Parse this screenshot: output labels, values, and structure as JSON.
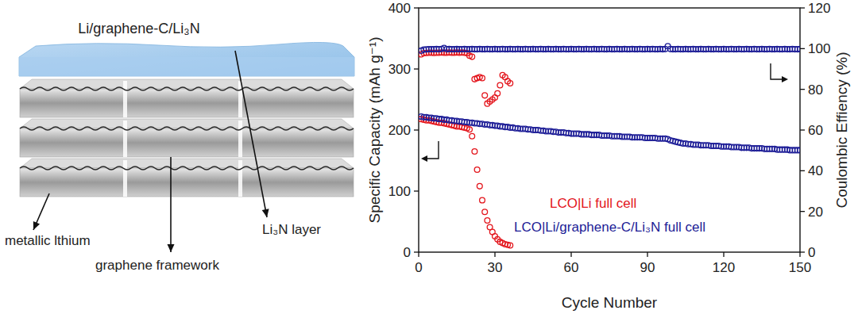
{
  "diagram": {
    "title": "Li/graphene-C/Li₃N",
    "labels": [
      "metallic lthium",
      "graphene framework",
      "Li₃N layer"
    ]
  },
  "chart_data": {
    "type": "scatter",
    "x_label": "Cycle Number",
    "y_label": "Specific Capacity (mAh g⁻¹)",
    "y2_label": "Coulombic Effiency (%)",
    "xlim": [
      0,
      150
    ],
    "xticks": [
      0,
      30,
      60,
      90,
      120,
      150
    ],
    "ylim": [
      0,
      400
    ],
    "yticks": [
      0,
      100,
      200,
      300,
      400
    ],
    "y2lim": [
      0,
      120
    ],
    "y2ticks": [
      0,
      20,
      40,
      60,
      80,
      100,
      120
    ],
    "legend": "lower right",
    "marker": "circle",
    "x": [
      1,
      2,
      3,
      4,
      5,
      6,
      7,
      8,
      9,
      10,
      11,
      12,
      13,
      14,
      15,
      16,
      17,
      18,
      19,
      20,
      21,
      22,
      23,
      24,
      25,
      26,
      27,
      28,
      29,
      30,
      31,
      32,
      33,
      34,
      35,
      36,
      37,
      38,
      39,
      40,
      41,
      42,
      43,
      44,
      45,
      46,
      47,
      48,
      49,
      50,
      51,
      52,
      53,
      54,
      55,
      56,
      57,
      58,
      59,
      60,
      61,
      62,
      63,
      64,
      65,
      66,
      67,
      68,
      69,
      70,
      71,
      72,
      73,
      74,
      75,
      76,
      77,
      78,
      79,
      80,
      81,
      82,
      83,
      84,
      85,
      86,
      87,
      88,
      89,
      90,
      91,
      92,
      93,
      94,
      95,
      96,
      97,
      98,
      99,
      100,
      101,
      102,
      103,
      104,
      105,
      106,
      107,
      108,
      109,
      110,
      111,
      112,
      113,
      114,
      115,
      116,
      117,
      118,
      119,
      120,
      121,
      122,
      123,
      124,
      125,
      126,
      127,
      128,
      129,
      130,
      131,
      132,
      133,
      134,
      135,
      136,
      137,
      138,
      139,
      140,
      141,
      142,
      143,
      144,
      145,
      146,
      147,
      148,
      149,
      150
    ],
    "series": [
      {
        "name": "LCO|Li full cell",
        "color": "#e3141b",
        "values": [
          218,
          217,
          216,
          216,
          215,
          214,
          213,
          212,
          212,
          211,
          210,
          209,
          208,
          207,
          206,
          206,
          205,
          204,
          203,
          201,
          190,
          165,
          135,
          108,
          85,
          66,
          52,
          41,
          33,
          26,
          21,
          17,
          15,
          13,
          12,
          11,
          null,
          null,
          null,
          null,
          null,
          null,
          null,
          null,
          null,
          null,
          null,
          null,
          null,
          null,
          null,
          null,
          null,
          null,
          null,
          null,
          null,
          null,
          null,
          null,
          null,
          null,
          null,
          null,
          null,
          null,
          null,
          null,
          null,
          null,
          null,
          null,
          null,
          null,
          null,
          null,
          null,
          null,
          null,
          null,
          null,
          null,
          null,
          null,
          null,
          null,
          null,
          null,
          null,
          null,
          null,
          null,
          null,
          null,
          null,
          null,
          null,
          null,
          null,
          null,
          null,
          null,
          null,
          null,
          null,
          null,
          null,
          null,
          null,
          null,
          null,
          null,
          null,
          null,
          null,
          null,
          null,
          null,
          null,
          null,
          null,
          null,
          null,
          null,
          null,
          null,
          null,
          null,
          null,
          null,
          null,
          null,
          null,
          null,
          null,
          null,
          null,
          null,
          null,
          null,
          null,
          null,
          null,
          null,
          null,
          null,
          null,
          null,
          null,
          null
        ]
      },
      {
        "name": "LCO|Li/graphene-C/Li₃N full cell",
        "color": "#1c1c96",
        "values": [
          222,
          221,
          221,
          220,
          220,
          219,
          219,
          218,
          218,
          217,
          217,
          216,
          216,
          215,
          215,
          214,
          214,
          213,
          213,
          212,
          212,
          211,
          211,
          210,
          210,
          209,
          209,
          208,
          208,
          207,
          207,
          206,
          206,
          205,
          205,
          204,
          204,
          203,
          203,
          202,
          202,
          202,
          201,
          201,
          200,
          200,
          200,
          199,
          199,
          198,
          198,
          198,
          197,
          197,
          196,
          196,
          196,
          195,
          195,
          194,
          194,
          194,
          194,
          193,
          193,
          193,
          193,
          192,
          192,
          192,
          192,
          191,
          191,
          191,
          191,
          190,
          190,
          190,
          190,
          189,
          189,
          189,
          189,
          188,
          188,
          188,
          188,
          188,
          187,
          187,
          187,
          187,
          187,
          186,
          186,
          186,
          186,
          185,
          183,
          182,
          181,
          180,
          179,
          178,
          178,
          177,
          177,
          176,
          176,
          176,
          175,
          175,
          175,
          175,
          174,
          174,
          174,
          174,
          173,
          173,
          173,
          173,
          172,
          172,
          172,
          172,
          171,
          171,
          171,
          171,
          170,
          170,
          170,
          170,
          170,
          169,
          169,
          169,
          169,
          169,
          168,
          168,
          168,
          168,
          168,
          167,
          167,
          167,
          167,
          167
        ]
      },
      {
        "axis": "y2",
        "color": "#e3141b",
        "values": [
          97.2,
          97.8,
          97.9,
          98.0,
          98.0,
          97.9,
          98.0,
          98.0,
          98.1,
          98.0,
          98.0,
          98.1,
          98.0,
          98.0,
          98.1,
          98.0,
          98.1,
          98.0,
          97.8,
          96.5,
          96.0,
          85.0,
          85.5,
          86.0,
          85.5,
          77.0,
          73.0,
          74.0,
          75.0,
          76.0,
          78.0,
          82.0,
          87.0,
          86.0,
          84.0,
          83.0,
          null,
          null,
          null,
          null,
          null,
          null,
          null,
          null,
          null,
          null,
          null,
          null,
          null,
          null,
          null,
          null,
          null,
          null,
          null,
          null,
          null,
          null,
          null,
          null,
          null,
          null,
          null,
          null,
          null,
          null,
          null,
          null,
          null,
          null,
          null,
          null,
          null,
          null,
          null,
          null,
          null,
          null,
          null,
          null,
          null,
          null,
          null,
          null,
          null,
          null,
          null,
          null,
          null,
          null,
          null,
          null,
          null,
          null,
          null,
          null,
          null,
          null,
          null,
          null,
          null,
          null,
          null,
          null,
          null,
          null,
          null,
          null,
          null,
          null,
          null,
          null,
          null,
          null,
          null,
          null,
          null,
          null,
          null,
          null,
          null,
          null,
          null,
          null,
          null,
          null,
          null,
          null,
          null,
          null,
          null,
          null,
          null,
          null,
          null,
          null,
          null,
          null,
          null,
          null,
          null,
          null,
          null,
          null,
          null,
          null,
          null,
          null,
          null,
          null
        ]
      },
      {
        "axis": "y2",
        "color": "#1c1c96",
        "values": [
          99.0,
          99.5,
          99.6,
          99.7,
          99.7,
          99.7,
          99.8,
          99.7,
          99.8,
          100.3,
          99.7,
          99.8,
          99.7,
          99.7,
          99.8,
          99.7,
          99.7,
          99.8,
          99.7,
          99.7,
          99.8,
          99.7,
          99.7,
          99.8,
          99.7,
          99.7,
          99.8,
          99.7,
          99.7,
          99.8,
          99.7,
          99.7,
          99.8,
          99.7,
          99.7,
          99.8,
          99.7,
          99.7,
          99.8,
          99.7,
          99.7,
          99.8,
          99.7,
          99.7,
          99.8,
          99.7,
          99.7,
          99.8,
          99.7,
          99.7,
          99.8,
          99.7,
          99.7,
          99.8,
          99.7,
          99.7,
          99.8,
          99.7,
          99.7,
          99.8,
          99.7,
          99.7,
          99.8,
          99.7,
          99.7,
          99.8,
          99.7,
          99.7,
          99.8,
          99.7,
          99.7,
          99.8,
          99.7,
          99.7,
          99.8,
          99.7,
          99.7,
          99.8,
          99.7,
          99.7,
          99.8,
          99.7,
          99.7,
          99.8,
          99.7,
          99.7,
          99.8,
          99.7,
          99.7,
          99.8,
          99.7,
          99.8,
          99.7,
          99.7,
          99.8,
          99.7,
          99.8,
          101.2,
          99.8,
          99.7,
          99.7,
          99.8,
          99.7,
          99.7,
          99.8,
          99.7,
          99.7,
          99.8,
          99.7,
          99.7,
          99.8,
          99.7,
          99.7,
          99.8,
          99.7,
          99.7,
          99.8,
          99.7,
          99.7,
          99.8,
          99.7,
          99.7,
          99.8,
          99.7,
          99.7,
          99.8,
          99.7,
          99.7,
          99.8,
          99.7,
          99.7,
          99.8,
          99.7,
          99.7,
          99.8,
          99.7,
          99.7,
          99.8,
          99.7,
          99.7,
          99.8,
          99.7,
          99.7,
          99.8,
          99.7,
          99.7,
          99.8,
          99.7,
          99.7,
          99.8
        ]
      }
    ]
  }
}
